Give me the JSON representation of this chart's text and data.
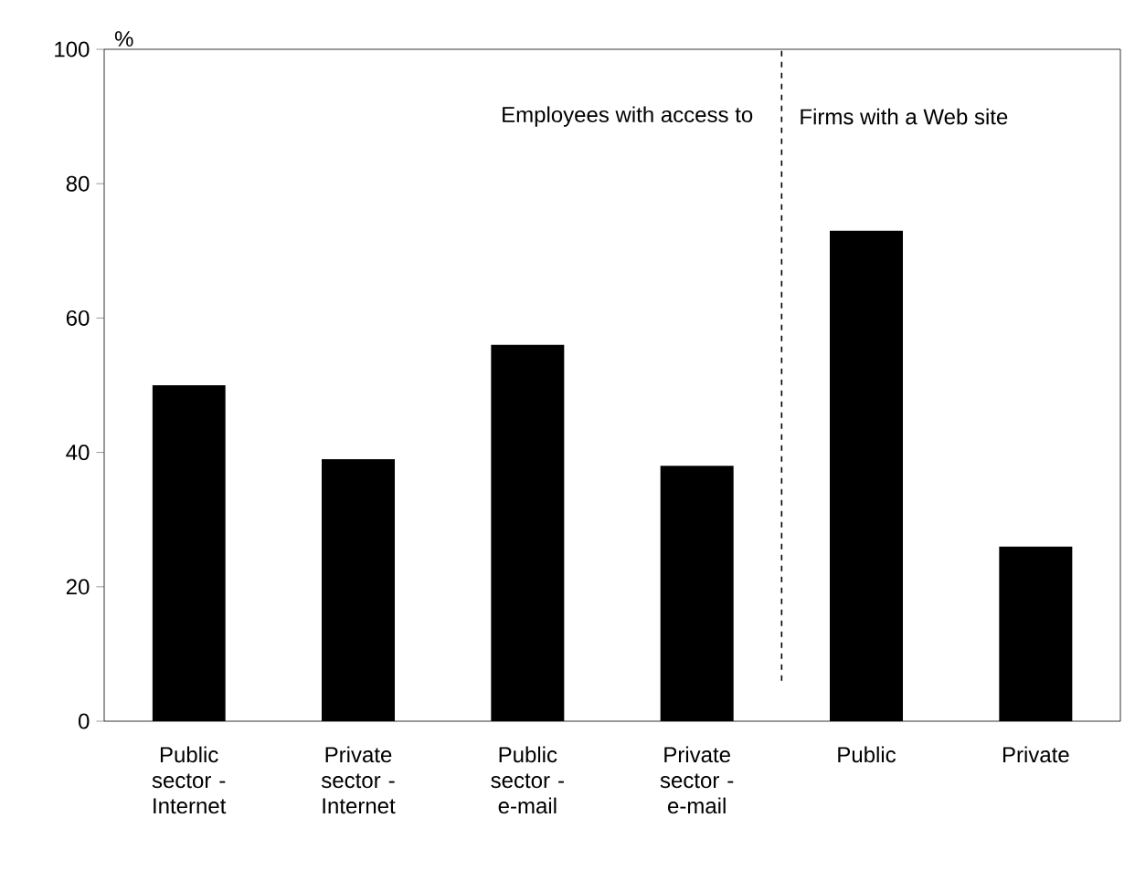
{
  "chart_data": {
    "type": "bar",
    "ylabel": "%",
    "categories": [
      "Public sector - Internet",
      "Private sector - Internet",
      "Public sector - e-mail",
      "Private sector - e-mail",
      "Public",
      "Private"
    ],
    "values": [
      50,
      39,
      56,
      38,
      73,
      26
    ],
    "color": "#000000",
    "ylim": [
      0,
      100
    ],
    "yticks": [
      0,
      20,
      40,
      60,
      80,
      100
    ],
    "grid": false,
    "annotations": [
      "Employees with access to",
      "Firms with a Web site"
    ]
  }
}
